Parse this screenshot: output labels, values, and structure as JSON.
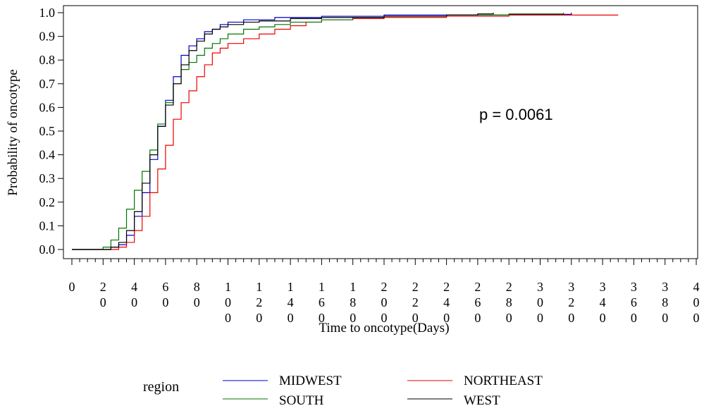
{
  "chart_data": {
    "type": "line",
    "step": true,
    "xlabel": "Time to oncotype(Days)",
    "ylabel": "Probability of oncotype",
    "xlim": [
      0,
      400
    ],
    "ylim": [
      0,
      1.0
    ],
    "x_ticks": [
      "0",
      "20",
      "40",
      "60",
      "80",
      "100",
      "120",
      "140",
      "160",
      "180",
      "200",
      "220",
      "240",
      "260",
      "280",
      "300",
      "320",
      "340",
      "360",
      "380",
      "400"
    ],
    "y_ticks": [
      "0.0",
      "0.1",
      "0.2",
      "0.3",
      "0.4",
      "0.5",
      "0.6",
      "0.7",
      "0.8",
      "0.9",
      "1.0"
    ],
    "grid": false,
    "annotation": "p = 0.0061",
    "legend": {
      "title": "region",
      "placement": "bottom",
      "entries": [
        "MIDWEST",
        "NORTHEAST",
        "SOUTH",
        "WEST"
      ]
    },
    "series": [
      {
        "name": "MIDWEST",
        "color": "#0000cc",
        "points": [
          [
            0,
            0
          ],
          [
            20,
            0
          ],
          [
            25,
            0.01
          ],
          [
            30,
            0.02
          ],
          [
            35,
            0.06
          ],
          [
            40,
            0.14
          ],
          [
            45,
            0.24
          ],
          [
            50,
            0.38
          ],
          [
            55,
            0.52
          ],
          [
            60,
            0.63
          ],
          [
            65,
            0.73
          ],
          [
            70,
            0.82
          ],
          [
            75,
            0.86
          ],
          [
            80,
            0.89
          ],
          [
            85,
            0.92
          ],
          [
            90,
            0.93
          ],
          [
            95,
            0.95
          ],
          [
            100,
            0.96
          ],
          [
            110,
            0.97
          ],
          [
            130,
            0.98
          ],
          [
            160,
            0.985
          ],
          [
            200,
            0.99
          ],
          [
            240,
            0.99
          ],
          [
            280,
            0.993
          ],
          [
            320,
            1.0
          ]
        ]
      },
      {
        "name": "NORTHEAST",
        "color": "#ee0000",
        "points": [
          [
            0,
            0
          ],
          [
            20,
            0
          ],
          [
            25,
            0.0
          ],
          [
            30,
            0.01
          ],
          [
            35,
            0.03
          ],
          [
            40,
            0.08
          ],
          [
            45,
            0.14
          ],
          [
            50,
            0.24
          ],
          [
            55,
            0.34
          ],
          [
            60,
            0.44
          ],
          [
            65,
            0.55
          ],
          [
            70,
            0.62
          ],
          [
            75,
            0.67
          ],
          [
            80,
            0.73
          ],
          [
            85,
            0.78
          ],
          [
            90,
            0.83
          ],
          [
            95,
            0.85
          ],
          [
            100,
            0.87
          ],
          [
            110,
            0.89
          ],
          [
            120,
            0.91
          ],
          [
            130,
            0.93
          ],
          [
            140,
            0.945
          ],
          [
            150,
            0.96
          ],
          [
            160,
            0.97
          ],
          [
            180,
            0.975
          ],
          [
            200,
            0.98
          ],
          [
            240,
            0.985
          ],
          [
            280,
            0.99
          ],
          [
            340,
            0.99
          ],
          [
            350,
            0.99
          ]
        ]
      },
      {
        "name": "SOUTH",
        "color": "#007700",
        "points": [
          [
            0,
            0
          ],
          [
            15,
            0
          ],
          [
            20,
            0.01
          ],
          [
            25,
            0.04
          ],
          [
            30,
            0.09
          ],
          [
            35,
            0.17
          ],
          [
            40,
            0.25
          ],
          [
            45,
            0.33
          ],
          [
            50,
            0.42
          ],
          [
            55,
            0.53
          ],
          [
            60,
            0.62
          ],
          [
            65,
            0.7
          ],
          [
            70,
            0.76
          ],
          [
            75,
            0.79
          ],
          [
            80,
            0.82
          ],
          [
            85,
            0.85
          ],
          [
            90,
            0.87
          ],
          [
            95,
            0.89
          ],
          [
            100,
            0.91
          ],
          [
            110,
            0.93
          ],
          [
            120,
            0.94
          ],
          [
            130,
            0.95
          ],
          [
            140,
            0.96
          ],
          [
            160,
            0.97
          ],
          [
            180,
            0.98
          ],
          [
            200,
            0.985
          ],
          [
            240,
            0.99
          ],
          [
            280,
            0.995
          ],
          [
            315,
            1.0
          ]
        ]
      },
      {
        "name": "WEST",
        "color": "#000000",
        "points": [
          [
            0,
            0
          ],
          [
            20,
            0
          ],
          [
            25,
            0.01
          ],
          [
            30,
            0.03
          ],
          [
            35,
            0.08
          ],
          [
            40,
            0.16
          ],
          [
            45,
            0.28
          ],
          [
            50,
            0.4
          ],
          [
            55,
            0.52
          ],
          [
            60,
            0.61
          ],
          [
            65,
            0.7
          ],
          [
            70,
            0.78
          ],
          [
            75,
            0.84
          ],
          [
            80,
            0.88
          ],
          [
            85,
            0.91
          ],
          [
            90,
            0.93
          ],
          [
            95,
            0.94
          ],
          [
            100,
            0.95
          ],
          [
            110,
            0.96
          ],
          [
            120,
            0.965
          ],
          [
            140,
            0.975
          ],
          [
            160,
            0.98
          ],
          [
            200,
            0.985
          ],
          [
            240,
            0.99
          ],
          [
            260,
            0.995
          ],
          [
            270,
            1.0
          ]
        ]
      }
    ]
  }
}
